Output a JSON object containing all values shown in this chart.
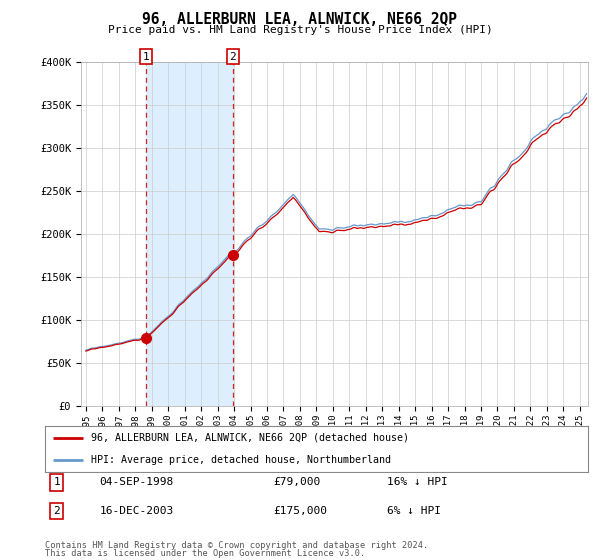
{
  "title": "96, ALLERBURN LEA, ALNWICK, NE66 2QP",
  "subtitle": "Price paid vs. HM Land Registry's House Price Index (HPI)",
  "sale1_date": "04-SEP-1998",
  "sale1_price": 79000,
  "sale1_label": "1",
  "sale1_hpi": "16% ↓ HPI",
  "sale2_date": "16-DEC-2003",
  "sale2_price": 175000,
  "sale2_label": "2",
  "sale2_hpi": "6% ↓ HPI",
  "legend_red": "96, ALLERBURN LEA, ALNWICK, NE66 2QP (detached house)",
  "legend_blue": "HPI: Average price, detached house, Northumberland",
  "footer1": "Contains HM Land Registry data © Crown copyright and database right 2024.",
  "footer2": "This data is licensed under the Open Government Licence v3.0.",
  "ylabel_ticks": [
    "£0",
    "£50K",
    "£100K",
    "£150K",
    "£200K",
    "£250K",
    "£300K",
    "£350K",
    "£400K"
  ],
  "ytick_vals": [
    0,
    50000,
    100000,
    150000,
    200000,
    250000,
    300000,
    350000,
    400000
  ],
  "red_color": "#cc0000",
  "blue_color": "#6699cc",
  "fill_color": "#ddeeff",
  "background_color": "#ffffff",
  "grid_color": "#cccccc",
  "sale1_year": 1998,
  "sale1_month": 9,
  "sale2_year": 2003,
  "sale2_month": 12
}
